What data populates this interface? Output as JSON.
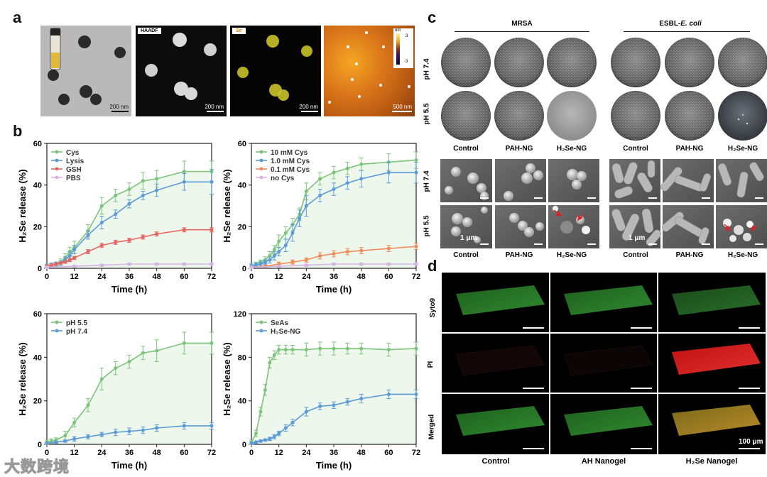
{
  "panels": {
    "a": "a",
    "b": "b",
    "c": "c",
    "d": "d"
  },
  "panel_a": {
    "scales": [
      "200 nm",
      "200 nm",
      "200 nm",
      "500 nm"
    ],
    "haadf_label": "HAADF",
    "se_label": "Se",
    "afm_unit": "nm",
    "afm_max": "3",
    "afm_min": "-3"
  },
  "panel_c": {
    "group1": "MRSA",
    "group2": "ESBL-",
    "group2_italic": "E. coli",
    "rows": [
      "pH 7.4",
      "pH 5.5"
    ],
    "sem_rows": [
      "pH 7.4",
      "pH 5.5"
    ],
    "dish_labels": [
      "Control",
      "PAH-NG",
      "H₂Se-NG",
      "Control",
      "PAH-NG",
      "H₂Se-NG"
    ],
    "sem_labels": [
      "Control",
      "PAH-NG",
      "H₂Se-NG",
      "Control",
      "PAH-NG",
      "H₂Se-NG"
    ],
    "scale": "1 μm"
  },
  "panel_d": {
    "rows": [
      "Syto9",
      "PI",
      "Merged"
    ],
    "cols": [
      "Control",
      "AH Nanogel",
      "H₂Se Nanogel"
    ],
    "scale": "100 μm"
  },
  "watermark": "大数跨境",
  "chart_data": [
    {
      "type": "line",
      "title": "",
      "xlabel": "Time (h)",
      "ylabel": "H₂Se release (%)",
      "xlim": [
        0,
        72
      ],
      "ylim": [
        0,
        60
      ],
      "xticks": [
        0,
        12,
        24,
        36,
        48,
        60,
        72
      ],
      "yticks": [
        0,
        20,
        40,
        60
      ],
      "legend": "top-left",
      "series": [
        {
          "name": "Cys",
          "color": "#7cc47b",
          "x": [
            0,
            2,
            4,
            6,
            8,
            10,
            12,
            18,
            24,
            30,
            36,
            42,
            48,
            60,
            72
          ],
          "values": [
            1,
            1.5,
            2,
            3,
            5,
            8,
            10,
            18,
            30,
            35,
            38,
            42,
            43,
            46.5,
            46.5
          ],
          "err": [
            1,
            1,
            1,
            1.5,
            2,
            2,
            3,
            3,
            4,
            3,
            3,
            4,
            4,
            5,
            5
          ]
        },
        {
          "name": "Lysis",
          "color": "#5b9bd5",
          "x": [
            0,
            2,
            4,
            6,
            8,
            10,
            12,
            18,
            24,
            30,
            36,
            42,
            48,
            60,
            72
          ],
          "values": [
            1,
            1.5,
            2,
            2.5,
            4,
            6,
            9,
            16,
            22,
            26,
            31,
            35,
            37.5,
            41.5,
            41.5
          ],
          "err": [
            1,
            1,
            1,
            1,
            1.5,
            2,
            2,
            2,
            3,
            2,
            2,
            2,
            3,
            4,
            6
          ]
        },
        {
          "name": "GSH",
          "color": "#e8655f",
          "x": [
            0,
            2,
            4,
            6,
            8,
            10,
            12,
            18,
            24,
            30,
            36,
            42,
            48,
            60,
            72
          ],
          "values": [
            1,
            1.5,
            2,
            2.5,
            3,
            4,
            5,
            8,
            11,
            12.5,
            13.5,
            15,
            16.5,
            18.5,
            18.5
          ],
          "err": [
            0.5,
            0.5,
            0.5,
            0.5,
            0.5,
            0.8,
            0.8,
            1,
            1,
            1,
            1,
            1,
            1,
            1,
            1
          ]
        },
        {
          "name": "PBS",
          "color": "#d7b6e6",
          "x": [
            0,
            12,
            24,
            36,
            48,
            60,
            72
          ],
          "values": [
            0.5,
            1,
            1.5,
            2,
            2,
            2,
            2
          ],
          "err": [
            0.5,
            0.5,
            0.5,
            0.5,
            0.5,
            0.5,
            0.5
          ]
        }
      ]
    },
    {
      "type": "line",
      "title": "",
      "xlabel": "Time (h)",
      "ylabel": "H₂Se release (%)",
      "xlim": [
        0,
        72
      ],
      "ylim": [
        0,
        60
      ],
      "xticks": [
        0,
        12,
        24,
        36,
        48,
        60,
        72
      ],
      "yticks": [
        0,
        20,
        40,
        60
      ],
      "legend": "top-left",
      "series": [
        {
          "name": "10  mM Cys",
          "color": "#7cc47b",
          "x": [
            0,
            2,
            4,
            6,
            8,
            10,
            12,
            15,
            18,
            21,
            24,
            30,
            36,
            42,
            48,
            60,
            72
          ],
          "values": [
            1,
            2,
            3,
            4,
            6,
            9,
            13,
            17,
            21,
            26,
            37,
            43,
            46,
            48,
            50,
            51,
            52
          ],
          "err": [
            1,
            1,
            1,
            1.5,
            2,
            2,
            3,
            3,
            3,
            3,
            4,
            3,
            3,
            3,
            3,
            4,
            4
          ]
        },
        {
          "name": "1.0 mM Cys",
          "color": "#5b9bd5",
          "x": [
            0,
            2,
            4,
            6,
            8,
            10,
            12,
            15,
            18,
            21,
            24,
            30,
            36,
            42,
            48,
            60,
            72
          ],
          "values": [
            1,
            1.5,
            2,
            3,
            4,
            6,
            8,
            11,
            17,
            24,
            30,
            35,
            38,
            41,
            43,
            46,
            46
          ],
          "err": [
            1,
            1,
            1,
            1,
            1.5,
            2,
            2,
            3,
            4,
            4,
            5,
            3,
            3,
            3,
            4,
            5,
            5
          ]
        },
        {
          "name": "0.1 mM Cys",
          "color": "#f08a57",
          "x": [
            0,
            6,
            12,
            18,
            24,
            30,
            36,
            42,
            48,
            60,
            72
          ],
          "values": [
            0.5,
            1,
            2,
            3,
            4,
            6,
            7,
            8,
            8.5,
            9.5,
            10.5
          ],
          "err": [
            0.5,
            0.5,
            1,
            1,
            1,
            1.5,
            1.5,
            1.5,
            1.5,
            1.5,
            1.5
          ]
        },
        {
          "name": "no Cys",
          "color": "#d7b6e6",
          "x": [
            0,
            12,
            24,
            36,
            48,
            60,
            72
          ],
          "values": [
            0.5,
            1,
            1.5,
            2,
            2,
            2,
            2
          ],
          "err": [
            0.5,
            0.5,
            0.5,
            0.5,
            0.5,
            0.5,
            0.5
          ]
        }
      ]
    },
    {
      "type": "line",
      "title": "",
      "xlabel": "Time (h)",
      "ylabel": "H₂Se release (%)",
      "xlim": [
        0,
        72
      ],
      "ylim": [
        0,
        60
      ],
      "xticks": [
        0,
        12,
        24,
        36,
        48,
        60,
        72
      ],
      "yticks": [
        0,
        20,
        40,
        60
      ],
      "legend": "top-left",
      "series": [
        {
          "name": "pH 5.5",
          "color": "#7cc47b",
          "x": [
            0,
            2,
            4,
            8,
            12,
            18,
            24,
            30,
            36,
            42,
            48,
            60,
            72
          ],
          "values": [
            1,
            1.5,
            2,
            4,
            10,
            18,
            30,
            35,
            38,
            42,
            43,
            46.5,
            46.5
          ],
          "err": [
            1,
            1,
            1,
            2,
            2,
            3,
            5,
            3,
            3,
            3,
            5,
            5,
            5
          ]
        },
        {
          "name": "pH 7.4",
          "color": "#5b9bd5",
          "x": [
            0,
            4,
            8,
            12,
            18,
            24,
            30,
            36,
            42,
            48,
            60,
            72
          ],
          "values": [
            0.5,
            1,
            1.5,
            2.5,
            3.5,
            4.5,
            5.5,
            6,
            6.5,
            7.5,
            8.5,
            8.5
          ],
          "err": [
            0.5,
            0.5,
            0.5,
            1,
            1,
            1,
            1.5,
            1.5,
            1.5,
            1.5,
            1.5,
            1.5
          ]
        }
      ]
    },
    {
      "type": "line",
      "title": "",
      "xlabel": "Time (h)",
      "ylabel": "H₂Se release (%)",
      "xlim": [
        0,
        72
      ],
      "ylim": [
        0,
        120
      ],
      "xticks": [
        0,
        12,
        24,
        36,
        48,
        60,
        72
      ],
      "yticks": [
        0,
        40,
        80,
        120
      ],
      "legend": "top-left",
      "series": [
        {
          "name": "SeAs",
          "color": "#7cc47b",
          "x": [
            0,
            2,
            4,
            6,
            8,
            10,
            12,
            15,
            18,
            24,
            30,
            36,
            42,
            48,
            60,
            72
          ],
          "values": [
            2,
            10,
            30,
            50,
            75,
            82,
            87,
            87,
            87,
            87,
            88,
            88,
            88,
            88,
            87,
            88
          ],
          "err": [
            2,
            3,
            4,
            5,
            5,
            4,
            4,
            4,
            4,
            6,
            6,
            6,
            5,
            5,
            6,
            6
          ]
        },
        {
          "name": "H₂Se-NG",
          "color": "#5b9bd5",
          "x": [
            0,
            2,
            4,
            6,
            8,
            10,
            12,
            15,
            18,
            24,
            30,
            36,
            42,
            48,
            60,
            72
          ],
          "values": [
            1,
            2,
            3,
            4,
            5,
            7,
            10,
            15,
            20,
            30,
            35,
            36,
            39,
            42,
            46,
            46
          ],
          "err": [
            1,
            1,
            1,
            1,
            1.5,
            2,
            2,
            3,
            3,
            4,
            3,
            3,
            3,
            4,
            4,
            4
          ]
        }
      ]
    }
  ]
}
